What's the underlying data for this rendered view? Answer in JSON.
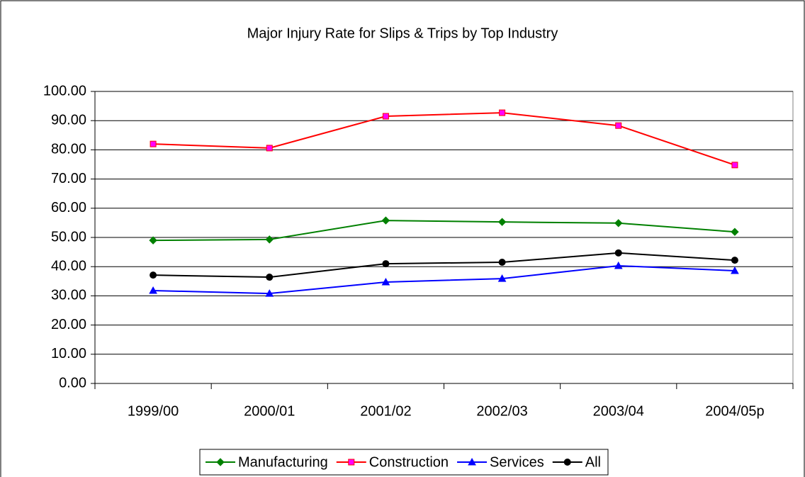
{
  "chart_data": {
    "type": "line",
    "title": "Major Injury Rate for Slips & Trips by Top Industry",
    "categories": [
      "1999/00",
      "2000/01",
      "2001/02",
      "2002/03",
      "2003/04",
      "2004/05p"
    ],
    "series": [
      {
        "name": "Manufacturing",
        "color": "#008000",
        "marker": "diamond",
        "marker_fill": "#008000",
        "values": [
          49.0,
          49.3,
          55.8,
          55.3,
          54.9,
          51.9
        ]
      },
      {
        "name": "Construction",
        "color": "#ff0000",
        "marker": "square",
        "marker_fill": "#ff00ff",
        "values": [
          82.0,
          80.6,
          91.5,
          92.7,
          88.3,
          74.8
        ]
      },
      {
        "name": "Services",
        "color": "#0000ff",
        "marker": "triangle",
        "marker_fill": "#0000ff",
        "values": [
          31.8,
          30.8,
          34.7,
          35.9,
          40.3,
          38.6
        ]
      },
      {
        "name": "All",
        "color": "#000000",
        "marker": "circle",
        "marker_fill": "#000000",
        "values": [
          37.1,
          36.4,
          41.0,
          41.5,
          44.7,
          42.2
        ]
      }
    ],
    "ylim": [
      0,
      100
    ],
    "yticks": [
      {
        "value": 0,
        "label": "0.00"
      },
      {
        "value": 10,
        "label": "10.00"
      },
      {
        "value": 20,
        "label": "20.00"
      },
      {
        "value": 30,
        "label": "30.00"
      },
      {
        "value": 40,
        "label": "40.00"
      },
      {
        "value": 50,
        "label": "50.00"
      },
      {
        "value": 60,
        "label": "60.00"
      },
      {
        "value": 70,
        "label": "70.00"
      },
      {
        "value": 80,
        "label": "80.00"
      },
      {
        "value": 90,
        "label": "90.00"
      },
      {
        "value": 100,
        "label": "100.00"
      }
    ],
    "grid": true,
    "legend": "bottom"
  }
}
